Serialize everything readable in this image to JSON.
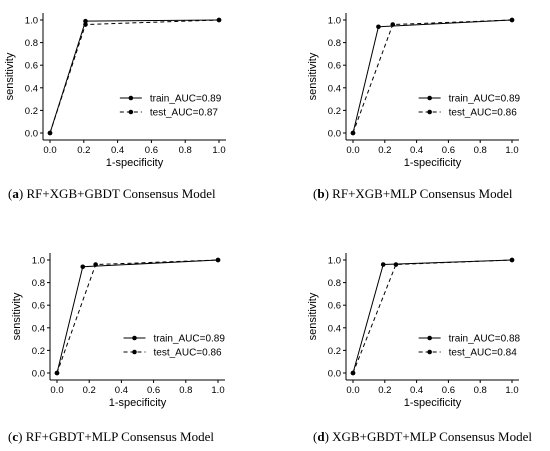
{
  "chart_data": [
    {
      "type": "line",
      "caption_letter": "a",
      "caption_text": "RF+XGB+GBDT Consensus Model",
      "xlabel": "1-specificity",
      "ylabel": "sensitivity",
      "xlim": [
        0.0,
        1.0
      ],
      "ylim": [
        0.0,
        1.0
      ],
      "xticks": [
        "0.0",
        "0.2",
        "0.4",
        "0.6",
        "0.8",
        "1.0"
      ],
      "yticks": [
        "0.0",
        "0.2",
        "0.4",
        "0.6",
        "0.8",
        "1.0"
      ],
      "legend_position": "lower-right",
      "series": [
        {
          "name": "train_AUC=0.89",
          "style": "solid",
          "x": [
            0.0,
            0.21,
            1.0
          ],
          "y": [
            0.0,
            0.99,
            1.0
          ]
        },
        {
          "name": "test_AUC=0.87",
          "style": "dashed",
          "x": [
            0.0,
            0.21,
            1.0
          ],
          "y": [
            0.0,
            0.96,
            1.0
          ]
        }
      ]
    },
    {
      "type": "line",
      "caption_letter": "b",
      "caption_text": "RF+XGB+MLP Consensus Model",
      "xlabel": "1-specificity",
      "ylabel": "sensitivity",
      "xlim": [
        0.0,
        1.0
      ],
      "ylim": [
        0.0,
        1.0
      ],
      "xticks": [
        "0.0",
        "0.2",
        "0.4",
        "0.6",
        "0.8",
        "1.0"
      ],
      "yticks": [
        "0.0",
        "0.2",
        "0.4",
        "0.6",
        "0.8",
        "1.0"
      ],
      "legend_position": "lower-right",
      "series": [
        {
          "name": "train_AUC=0.89",
          "style": "solid",
          "x": [
            0.0,
            0.16,
            1.0
          ],
          "y": [
            0.0,
            0.94,
            1.0
          ]
        },
        {
          "name": "test_AUC=0.86",
          "style": "dashed",
          "x": [
            0.0,
            0.25,
            1.0
          ],
          "y": [
            0.0,
            0.96,
            1.0
          ]
        }
      ]
    },
    {
      "type": "line",
      "caption_letter": "c",
      "caption_text": "RF+GBDT+MLP Consensus Model",
      "xlabel": "1-specificity",
      "ylabel": "sensitivity",
      "xlim": [
        0.0,
        1.0
      ],
      "ylim": [
        0.0,
        1.0
      ],
      "xticks": [
        "0.0",
        "0.2",
        "0.4",
        "0.6",
        "0.8",
        "1.0"
      ],
      "yticks": [
        "0.0",
        "0.2",
        "0.4",
        "0.6",
        "0.8",
        "1.0"
      ],
      "legend_position": "lower-right",
      "series": [
        {
          "name": "train_AUC=0.89",
          "style": "solid",
          "x": [
            0.0,
            0.16,
            1.0
          ],
          "y": [
            0.0,
            0.94,
            1.0
          ]
        },
        {
          "name": "test_AUC=0.86",
          "style": "dashed",
          "x": [
            0.0,
            0.24,
            1.0
          ],
          "y": [
            0.0,
            0.96,
            1.0
          ]
        }
      ]
    },
    {
      "type": "line",
      "caption_letter": "d",
      "caption_text": "XGB+GBDT+MLP Consensus Model",
      "xlabel": "1-specificity",
      "ylabel": "sensitivity",
      "xlim": [
        0.0,
        1.0
      ],
      "ylim": [
        0.0,
        1.0
      ],
      "xticks": [
        "0.0",
        "0.2",
        "0.4",
        "0.6",
        "0.8",
        "1.0"
      ],
      "yticks": [
        "0.0",
        "0.2",
        "0.4",
        "0.6",
        "0.8",
        "1.0"
      ],
      "legend_position": "lower-right",
      "series": [
        {
          "name": "train_AUC=0.88",
          "style": "solid",
          "x": [
            0.0,
            0.19,
            1.0
          ],
          "y": [
            0.0,
            0.96,
            1.0
          ]
        },
        {
          "name": "test_AUC=0.84",
          "style": "dashed",
          "x": [
            0.0,
            0.27,
            1.0
          ],
          "y": [
            0.0,
            0.96,
            1.0
          ]
        }
      ]
    }
  ]
}
